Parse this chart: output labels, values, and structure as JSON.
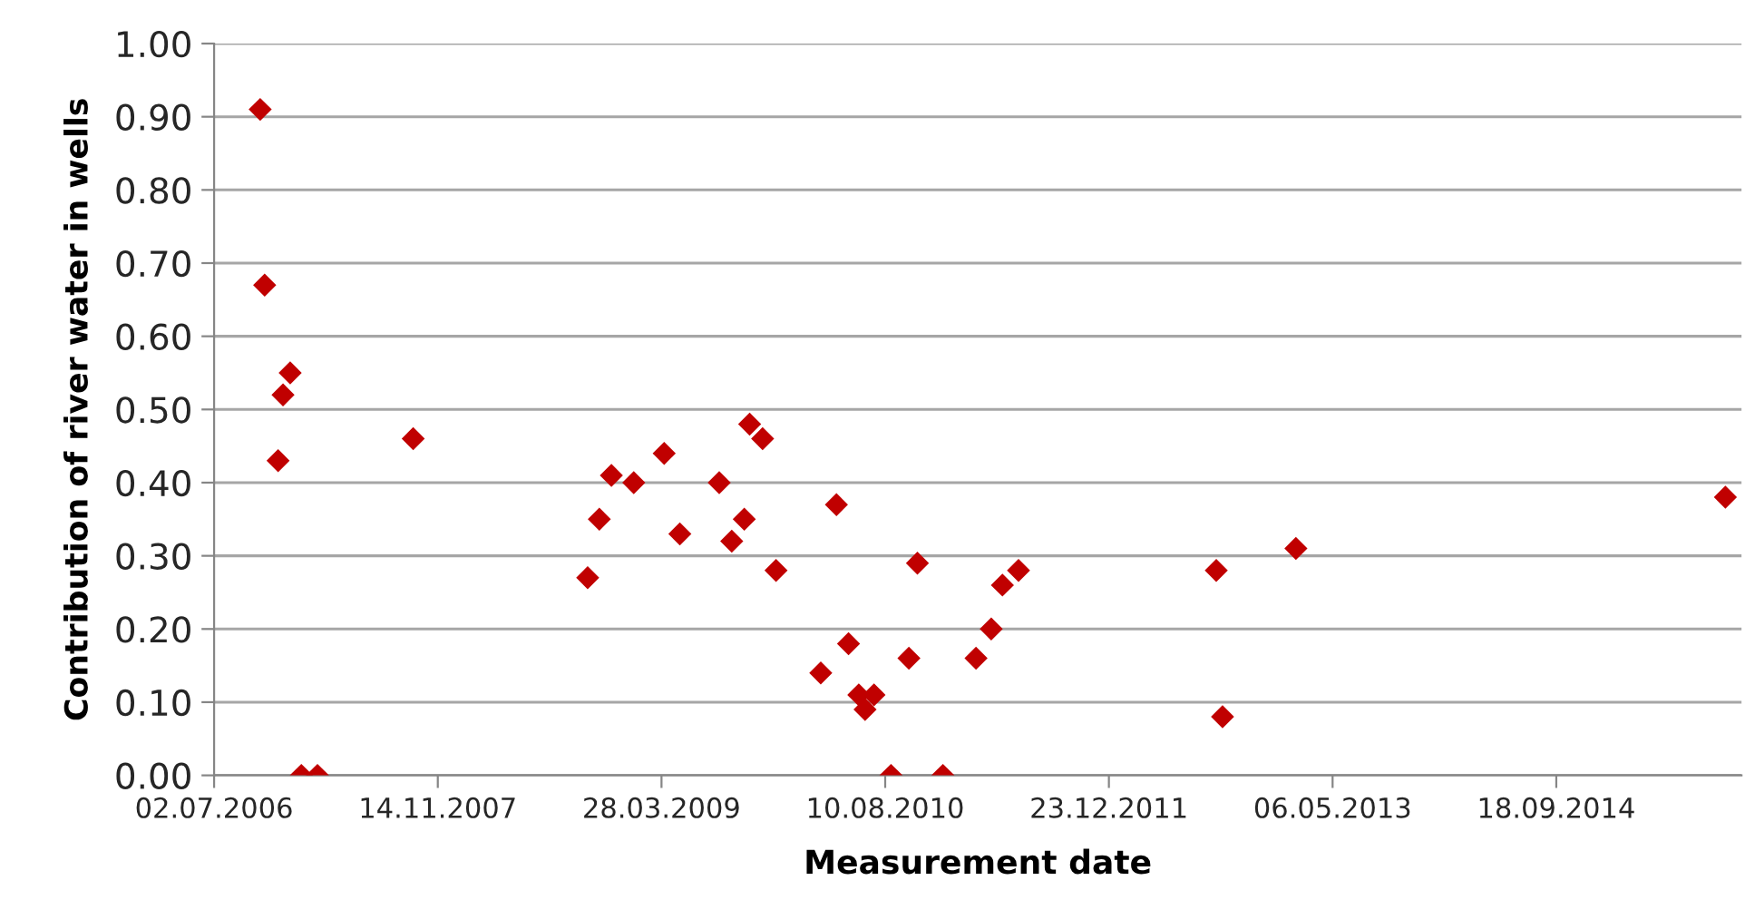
{
  "chart_data": {
    "type": "scatter",
    "xlabel": "Measurement date",
    "ylabel": "Contribution of river water in wells",
    "x": [
      "2006-10-13",
      "2006-10-23",
      "2006-11-22",
      "2006-12-03",
      "2006-12-19",
      "2007-01-13",
      "2007-02-18",
      "2007-09-20",
      "2008-10-14",
      "2008-11-09",
      "2008-12-06",
      "2009-01-25",
      "2009-04-03",
      "2009-05-08",
      "2009-08-04",
      "2009-09-01",
      "2009-09-29",
      "2009-10-11",
      "2009-11-09",
      "2009-12-09",
      "2010-03-19",
      "2010-04-23",
      "2010-05-20",
      "2010-06-12",
      "2010-06-26",
      "2010-07-16",
      "2010-08-23",
      "2010-10-02",
      "2010-10-21",
      "2010-12-17",
      "2011-03-01",
      "2011-04-04",
      "2011-04-29",
      "2011-06-04",
      "2012-08-19",
      "2012-09-02",
      "2013-02-13",
      "2015-10-01"
    ],
    "series": [
      {
        "color": "#c00000",
        "values": [
          0.91,
          0.67,
          0.43,
          0.52,
          0.55,
          0.0,
          0.0,
          0.46,
          0.27,
          0.35,
          0.41,
          0.4,
          0.44,
          0.33,
          0.4,
          0.32,
          0.35,
          0.48,
          0.46,
          0.28,
          0.14,
          0.37,
          0.18,
          0.11,
          0.09,
          0.11,
          0.0,
          0.16,
          0.29,
          0.0,
          0.16,
          0.2,
          0.26,
          0.28,
          0.28,
          0.08,
          0.31,
          0.38
        ]
      }
    ],
    "marker": "diamond",
    "grid": "y",
    "xlim": [
      "2006-07-02",
      "2015-11-06"
    ],
    "xticks": [
      {
        "value": "2006-07-02",
        "label": "02.07.2006"
      },
      {
        "value": "2007-11-14",
        "label": "14.11.2007"
      },
      {
        "value": "2009-03-28",
        "label": "28.03.2009"
      },
      {
        "value": "2010-08-10",
        "label": "10.08.2010"
      },
      {
        "value": "2011-12-23",
        "label": "23.12.2011"
      },
      {
        "value": "2013-05-06",
        "label": "06.05.2013"
      },
      {
        "value": "2014-09-18",
        "label": "18.09.2014"
      }
    ],
    "ylim": [
      0,
      1
    ],
    "yticks": [
      {
        "value": 0,
        "label": "0.00"
      },
      {
        "value": 0.1,
        "label": "0.10"
      },
      {
        "value": 0.2,
        "label": "0.20"
      },
      {
        "value": 0.3,
        "label": "0.30"
      },
      {
        "value": 0.4,
        "label": "0.40"
      },
      {
        "value": 0.5,
        "label": "0.50"
      },
      {
        "value": 0.6,
        "label": "0.60"
      },
      {
        "value": 0.7,
        "label": "0.70"
      },
      {
        "value": 0.8,
        "label": "0.80"
      },
      {
        "value": 0.9,
        "label": "0.90"
      },
      {
        "value": 1,
        "label": "1.00"
      }
    ]
  }
}
